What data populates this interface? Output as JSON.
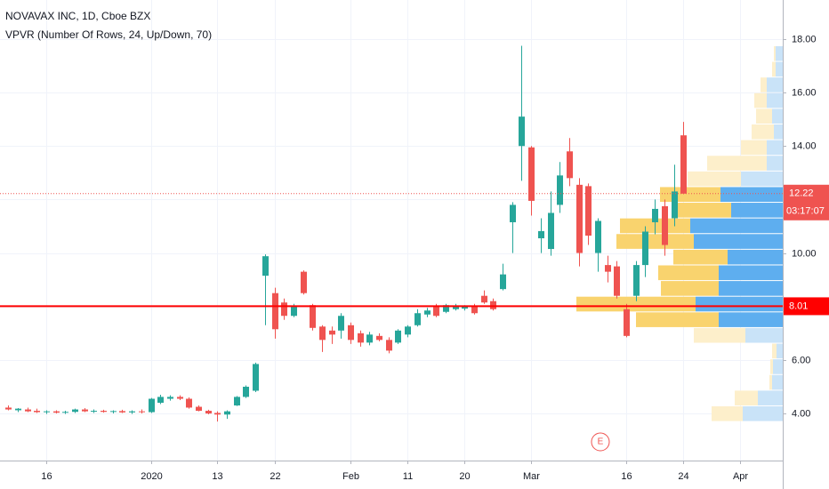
{
  "chart_data": {
    "type": "candlestick",
    "title": "NOVAVAX INC, 1D, Cboe BZX",
    "subtitle": "VPVR (Number Of Rows, 24, Up/Down, 70)",
    "categories": [
      null,
      null,
      null,
      null,
      "16",
      null,
      null,
      null,
      null,
      null,
      null,
      null,
      null,
      null,
      null,
      "2020",
      null,
      null,
      null,
      null,
      null,
      null,
      "13",
      null,
      null,
      null,
      null,
      null,
      "22",
      null,
      null,
      null,
      null,
      null,
      null,
      null,
      "Feb",
      null,
      null,
      null,
      null,
      null,
      "11",
      null,
      null,
      null,
      null,
      null,
      "20",
      null,
      null,
      null,
      null,
      null,
      null,
      "Mar",
      null,
      null,
      null,
      null,
      null,
      null,
      null,
      null,
      null,
      "16",
      null,
      null,
      null,
      null,
      null,
      "24",
      null,
      null,
      null,
      null,
      null,
      "Apr",
      null,
      null,
      null,
      null
    ],
    "open": [
      4.22,
      4.12,
      4.15,
      4.1,
      4.05,
      4.08,
      4.03,
      4.06,
      4.15,
      4.08,
      4.1,
      4.06,
      4.09,
      4.04,
      4.08,
      4.05,
      4.4,
      4.55,
      4.62,
      4.55,
      4.25,
      4.1,
      4.02,
      3.96,
      4.3,
      4.62,
      4.85,
      9.15,
      8.5,
      8.15,
      7.65,
      9.3,
      8.05,
      7.25,
      7.1,
      7.1,
      7.3,
      7.0,
      6.65,
      6.9,
      6.75,
      6.65,
      6.95,
      7.3,
      7.7,
      8.0,
      7.8,
      7.9,
      7.92,
      8.0,
      8.4,
      8.2,
      8.65,
      11.15,
      14.0,
      13.95,
      10.55,
      10.15,
      11.8,
      13.8,
      12.55,
      12.5,
      10.0,
      9.55,
      9.5,
      7.9,
      8.4,
      9.55,
      11.15,
      11.75,
      11.3,
      14.4,
      null,
      null,
      null,
      null,
      null,
      null,
      null,
      null,
      null,
      null
    ],
    "high": [
      4.3,
      4.2,
      4.22,
      4.18,
      4.12,
      4.12,
      4.1,
      4.18,
      4.2,
      4.15,
      4.14,
      4.12,
      4.14,
      4.12,
      4.15,
      4.58,
      4.7,
      4.68,
      4.68,
      4.6,
      4.3,
      4.14,
      4.08,
      4.12,
      4.65,
      5.05,
      5.9,
      9.95,
      8.7,
      8.3,
      8.1,
      9.35,
      8.1,
      7.3,
      7.25,
      7.75,
      7.4,
      7.1,
      7.05,
      7.0,
      6.85,
      7.15,
      7.3,
      7.9,
      7.95,
      8.1,
      8.1,
      8.1,
      8.05,
      8.1,
      8.6,
      8.3,
      9.6,
      11.9,
      17.75,
      14.0,
      11.3,
      12.3,
      13.4,
      14.3,
      12.8,
      12.6,
      11.3,
      9.9,
      9.7,
      8.1,
      9.7,
      11.0,
      12.0,
      12.0,
      13.3,
      14.9,
      null,
      null,
      null,
      null,
      null,
      null,
      null,
      null,
      null,
      null
    ],
    "low": [
      4.12,
      4.05,
      4.05,
      4.02,
      3.98,
      4.0,
      3.98,
      4.02,
      4.05,
      4.02,
      4.03,
      4.0,
      4.02,
      3.98,
      4.0,
      4.02,
      4.35,
      4.48,
      4.5,
      4.18,
      4.08,
      3.97,
      3.7,
      3.8,
      4.28,
      4.58,
      4.8,
      7.3,
      6.8,
      7.5,
      7.6,
      8.45,
      7.1,
      6.3,
      6.6,
      6.8,
      6.6,
      6.5,
      6.55,
      6.7,
      6.25,
      6.6,
      6.85,
      7.25,
      7.6,
      7.6,
      7.75,
      7.85,
      7.85,
      7.7,
      8.1,
      7.85,
      8.6,
      10.0,
      12.7,
      11.4,
      10.0,
      9.9,
      11.5,
      12.5,
      9.5,
      10.3,
      9.3,
      8.9,
      8.3,
      6.85,
      8.2,
      9.1,
      10.7,
      9.9,
      11.0,
      12.2,
      null,
      null,
      null,
      null,
      null,
      null,
      null,
      null,
      null,
      null
    ],
    "close": [
      4.15,
      4.18,
      4.08,
      4.05,
      4.08,
      4.03,
      4.06,
      4.15,
      4.08,
      4.1,
      4.06,
      4.09,
      4.04,
      4.08,
      4.05,
      4.55,
      4.62,
      4.62,
      4.55,
      4.22,
      4.1,
      4.0,
      3.96,
      4.08,
      4.62,
      5.0,
      5.85,
      9.88,
      7.15,
      7.65,
      8.0,
      8.5,
      7.2,
      6.75,
      6.95,
      7.65,
      6.75,
      6.65,
      6.95,
      6.75,
      6.35,
      7.1,
      7.25,
      7.75,
      7.85,
      7.65,
      8.05,
      8.0,
      8.0,
      7.75,
      8.15,
      7.9,
      9.2,
      11.8,
      15.1,
      11.95,
      10.82,
      11.5,
      12.9,
      12.8,
      10.0,
      10.65,
      11.2,
      9.3,
      8.4,
      6.9,
      9.55,
      10.8,
      11.65,
      10.3,
      12.3,
      12.22,
      null,
      null,
      null,
      null,
      null,
      null,
      null,
      null,
      null,
      null
    ],
    "up_color": "#26a69a",
    "down_color": "#ef5350",
    "ylim": [
      2.24,
      19.46
    ],
    "yticks": [
      {
        "value": 4,
        "label": "4.00"
      },
      {
        "value": 6,
        "label": "6.00"
      },
      {
        "value": 8,
        "label": "8.00"
      },
      {
        "value": 10,
        "label": "10.00"
      },
      {
        "value": 12,
        "label": "12.00"
      },
      {
        "value": 14,
        "label": "14.00"
      },
      {
        "value": 16,
        "label": "16.00"
      },
      {
        "value": 18,
        "label": "18.00"
      }
    ],
    "grid": true,
    "volume_profile": {
      "low": 3.7,
      "high": 17.75,
      "up_color": "#5eaeef",
      "down_color": "#f9d36e",
      "up_color_outside": "#c9e3f8",
      "down_color_outside": "#fdefcb",
      "rows": [
        {
          "up": 45,
          "down": 35,
          "value_area": false
        },
        {
          "up": 28,
          "down": 26,
          "value_area": false
        },
        {
          "up": 12,
          "down": 3,
          "value_area": false
        },
        {
          "up": 11,
          "down": 3,
          "value_area": false
        },
        {
          "up": 7,
          "down": 5,
          "value_area": false
        },
        {
          "up": 42,
          "down": 58,
          "value_area": false
        },
        {
          "up": 72,
          "down": 93,
          "value_area": true
        },
        {
          "up": 98,
          "down": 134,
          "value_area": true
        },
        {
          "up": 72,
          "down": 65,
          "value_area": true
        },
        {
          "up": 72,
          "down": 68,
          "value_area": true
        },
        {
          "up": 62,
          "down": 61,
          "value_area": true
        },
        {
          "up": 100,
          "down": 87,
          "value_area": true
        },
        {
          "up": 104,
          "down": 79,
          "value_area": true
        },
        {
          "up": 58,
          "down": 62,
          "value_area": true
        },
        {
          "up": 70,
          "down": 68,
          "value_area": true
        },
        {
          "up": 47,
          "down": 60,
          "value_area": false
        },
        {
          "up": 18,
          "down": 67,
          "value_area": false
        },
        {
          "up": 18,
          "down": 29,
          "value_area": false
        },
        {
          "up": 10,
          "down": 25,
          "value_area": false
        },
        {
          "up": 12,
          "down": 18,
          "value_area": false
        },
        {
          "up": 18,
          "down": 14,
          "value_area": false
        },
        {
          "up": 18,
          "down": 7,
          "value_area": false
        },
        {
          "up": 8,
          "down": 4,
          "value_area": false
        },
        {
          "up": 8,
          "down": 2,
          "value_area": false
        }
      ]
    },
    "price_lines": [
      {
        "value": 8.01,
        "color": "#ff0000",
        "style": "solid"
      },
      {
        "value": 12.22,
        "color": "#ef5350",
        "style": "dotted",
        "countdown": "03:17:07"
      }
    ],
    "events": [
      {
        "label": "E",
        "index": 62
      }
    ]
  }
}
